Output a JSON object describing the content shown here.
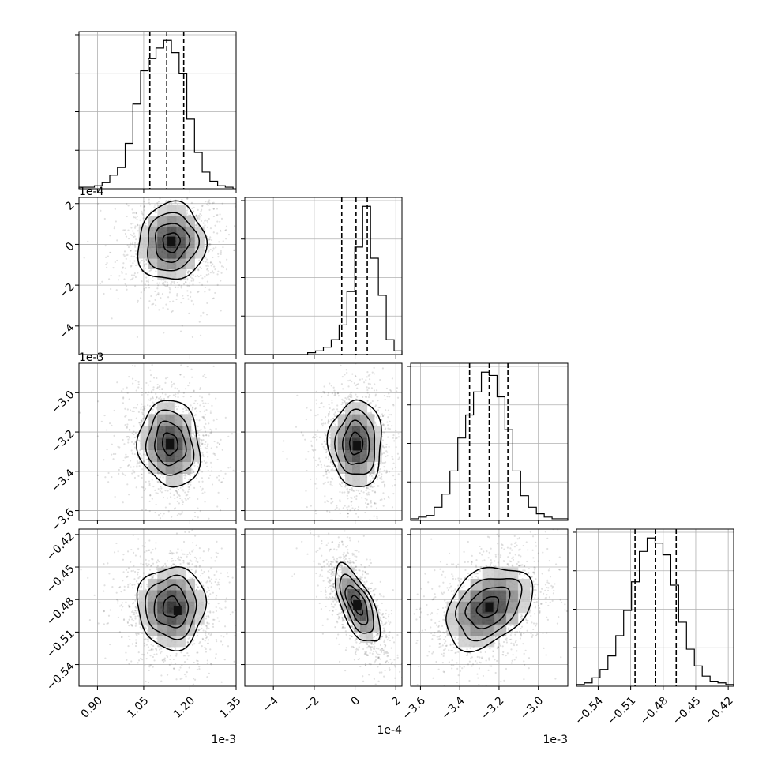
{
  "chart_data": {
    "type": "corner",
    "parameters": [
      {
        "range": [
          0.84,
          1.35
        ],
        "ticks": [
          0.9,
          1.05,
          1.2,
          1.35
        ],
        "tick_labels": [
          "0.90",
          "1.05",
          "1.20",
          "1.35"
        ],
        "offset_label": "1e-3",
        "quantiles": [
          1.07,
          1.125,
          1.18
        ],
        "hist_bin_edges": [
          0.84,
          0.865,
          0.89,
          0.915,
          0.94,
          0.965,
          0.99,
          1.015,
          1.04,
          1.065,
          1.09,
          1.115,
          1.14,
          1.165,
          1.19,
          1.215,
          1.24,
          1.265,
          1.29,
          1.315,
          1.34
        ],
        "hist_counts": [
          1,
          1,
          2,
          4,
          9,
          14,
          30,
          56,
          78,
          86,
          93,
          98,
          90,
          76,
          46,
          24,
          11,
          5,
          2,
          1
        ]
      },
      {
        "range": [
          -5.4,
          2.3
        ],
        "ticks": [
          -4,
          -2,
          0,
          2
        ],
        "tick_labels": [
          "−4",
          "−2",
          "0",
          "2"
        ],
        "offset_label": "1e-4",
        "quantiles": [
          -0.65,
          0.05,
          0.6
        ],
        "hist_bin_edges": [
          -5.4,
          -5.015,
          -4.63,
          -4.245,
          -3.86,
          -3.475,
          -3.09,
          -2.705,
          -2.32,
          -1.935,
          -1.55,
          -1.165,
          -0.78,
          -0.395,
          -0.01,
          0.375,
          0.76,
          1.145,
          1.53,
          1.915,
          2.3
        ],
        "hist_counts": [
          0,
          0,
          0,
          0,
          0,
          0,
          0,
          0,
          1,
          2,
          4,
          8,
          16,
          34,
          58,
          80,
          52,
          32,
          8,
          2
        ]
      },
      {
        "range": [
          -3.65,
          -2.85
        ],
        "ticks": [
          -3.6,
          -3.4,
          -3.2,
          -3.0
        ],
        "tick_labels": [
          "−3.6",
          "−3.4",
          "−3.2",
          "−3.0"
        ],
        "offset_label": "1e-3",
        "quantiles": [
          -3.35,
          -3.25,
          -3.155
        ],
        "hist_bin_edges": [
          -3.65,
          -3.61,
          -3.57,
          -3.53,
          -3.49,
          -3.45,
          -3.41,
          -3.37,
          -3.33,
          -3.29,
          -3.25,
          -3.21,
          -3.17,
          -3.13,
          -3.09,
          -3.05,
          -3.01,
          -2.97,
          -2.93,
          -2.89,
          -2.85
        ],
        "hist_counts": [
          1,
          2,
          3,
          8,
          16,
          30,
          50,
          64,
          78,
          90,
          88,
          75,
          55,
          30,
          15,
          8,
          4,
          2,
          1,
          1
        ]
      },
      {
        "range": [
          -0.56,
          -0.415
        ],
        "ticks": [
          -0.54,
          -0.51,
          -0.48,
          -0.45,
          -0.42
        ],
        "tick_labels": [
          "−0.54",
          "−0.51",
          "−0.48",
          "−0.45",
          "−0.42"
        ],
        "offset_label": "",
        "quantiles": [
          -0.506,
          -0.487,
          -0.468
        ],
        "hist_bin_edges": [
          -0.56,
          -0.55275,
          -0.5455,
          -0.53825,
          -0.531,
          -0.52375,
          -0.5165,
          -0.50925,
          -0.502,
          -0.49475,
          -0.4875,
          -0.48025,
          -0.473,
          -0.46575,
          -0.4585,
          -0.45125,
          -0.444,
          -0.43675,
          -0.4295,
          -0.42225,
          -0.415
        ],
        "hist_counts": [
          1,
          2,
          5,
          10,
          18,
          30,
          45,
          62,
          80,
          88,
          85,
          78,
          60,
          38,
          22,
          12,
          6,
          3,
          2,
          1
        ]
      }
    ],
    "pairs": [
      {
        "row": 1,
        "col": 0,
        "center": [
          1.14,
          0.1
        ],
        "sigma": [
          0.055,
          0.95
        ],
        "corr": 0.05,
        "peak": [
          1.14,
          0.15
        ]
      },
      {
        "row": 2,
        "col": 0,
        "center": [
          1.135,
          -3.26
        ],
        "sigma": [
          0.05,
          0.11
        ],
        "corr": -0.1,
        "peak": [
          1.135,
          -3.26
        ]
      },
      {
        "row": 2,
        "col": 1,
        "center": [
          0.05,
          -3.26
        ],
        "sigma": [
          0.65,
          0.11
        ],
        "corr": 0.0,
        "peak": [
          0.1,
          -3.27
        ]
      },
      {
        "row": 3,
        "col": 0,
        "center": [
          1.14,
          -0.487
        ],
        "sigma": [
          0.055,
          0.019
        ],
        "corr": 0.0,
        "peak": [
          1.16,
          -0.49
        ]
      },
      {
        "row": 3,
        "col": 1,
        "center": [
          0.1,
          -0.485
        ],
        "sigma": [
          0.55,
          0.018
        ],
        "corr": -0.65,
        "peak": [
          0.1,
          -0.485
        ]
      },
      {
        "row": 3,
        "col": 2,
        "center": [
          -3.255,
          -0.487
        ],
        "sigma": [
          0.11,
          0.019
        ],
        "corr": 0.35,
        "peak": [
          -3.25,
          -0.487
        ]
      }
    ],
    "contour_levels_sigma": [
      0.5,
      1.0,
      1.5,
      2.0
    ],
    "grid": true,
    "colors": {
      "line": "#000000",
      "grid": "#b0b0b0",
      "points": "#000000",
      "bins_dark": "#000000"
    }
  }
}
